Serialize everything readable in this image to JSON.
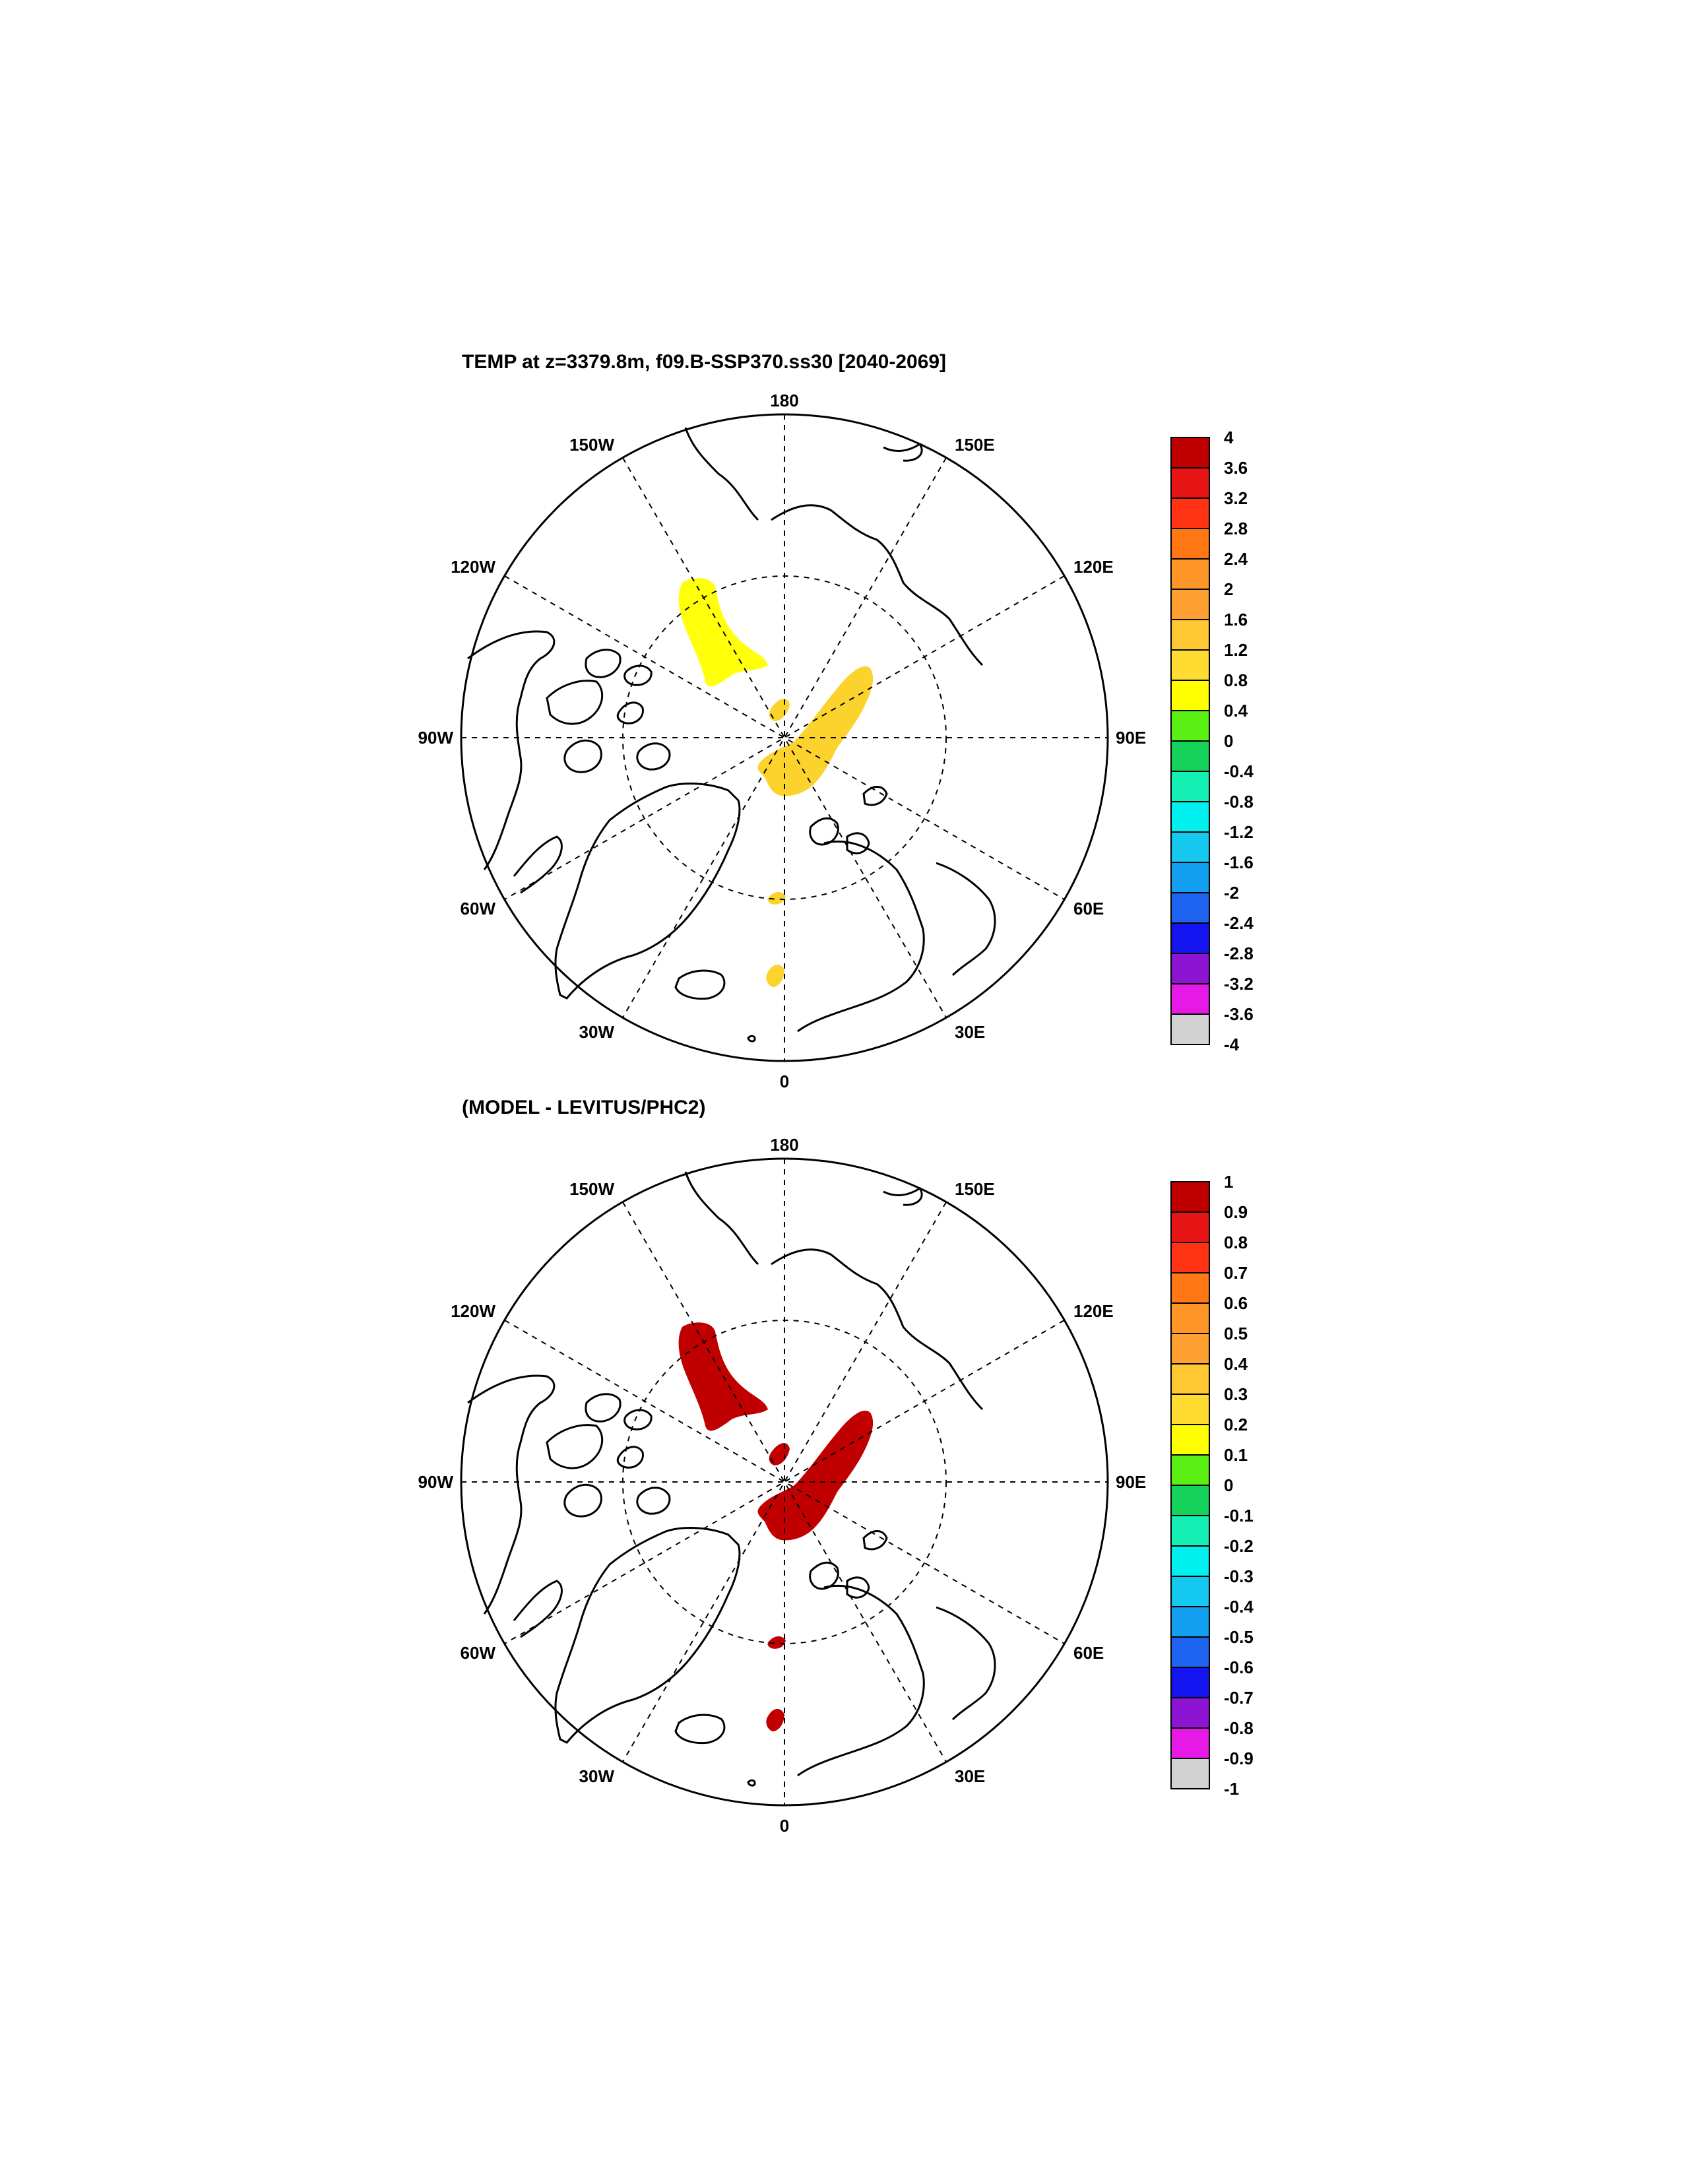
{
  "colors": {
    "palette": [
      "#6e6e6e",
      "#d2d2d2",
      "#e619e6",
      "#8c14d2",
      "#1414f0",
      "#1e64f0",
      "#14a0f0",
      "#14c8f0",
      "#00f0f0",
      "#14f0b4",
      "#14d25a",
      "#5af014",
      "#ffff00",
      "#ffdc32",
      "#ffc832",
      "#ffa032",
      "#ff9628",
      "#ff7814",
      "#ff3214",
      "#e61414",
      "#c00000"
    ],
    "coast": "#000000",
    "anomaly_top": "#fcd22c",
    "anomaly_top_north": "#ffff0a",
    "anomaly_bottom": "#c00000"
  },
  "grid_labels": {
    "lon_180": "180",
    "lon_150W": "150W",
    "lon_150E": "150E",
    "lon_120W": "120W",
    "lon_120E": "120E",
    "lon_90W": "90W",
    "lon_90E": "90E",
    "lon_60W": "60W",
    "lon_60E": "60E",
    "lon_30W": "30W",
    "lon_30E": "30E",
    "lon_0": "0"
  },
  "panels": [
    {
      "title": "TEMP at z=3379.8m, f09.B-SSP370.ss30 [2040-2069]",
      "colorbar_labels": [
        "4",
        "3.6",
        "3.2",
        "2.8",
        "2.4",
        "2",
        "1.6",
        "1.2",
        "0.8",
        "0.4",
        "0",
        "-0.4",
        "-0.8",
        "-1.2",
        "-1.6",
        "-2",
        "-2.4",
        "-2.8",
        "-3.2",
        "-3.6",
        "-4"
      ]
    },
    {
      "title": "(MODEL - LEVITUS/PHC2)",
      "colorbar_labels": [
        "1",
        "0.9",
        "0.8",
        "0.7",
        "0.6",
        "0.5",
        "0.4",
        "0.3",
        "0.2",
        "0.1",
        "0",
        "-0.1",
        "-0.2",
        "-0.3",
        "-0.4",
        "-0.5",
        "-0.6",
        "-0.7",
        "-0.8",
        "-0.9",
        "-1"
      ]
    }
  ]
}
